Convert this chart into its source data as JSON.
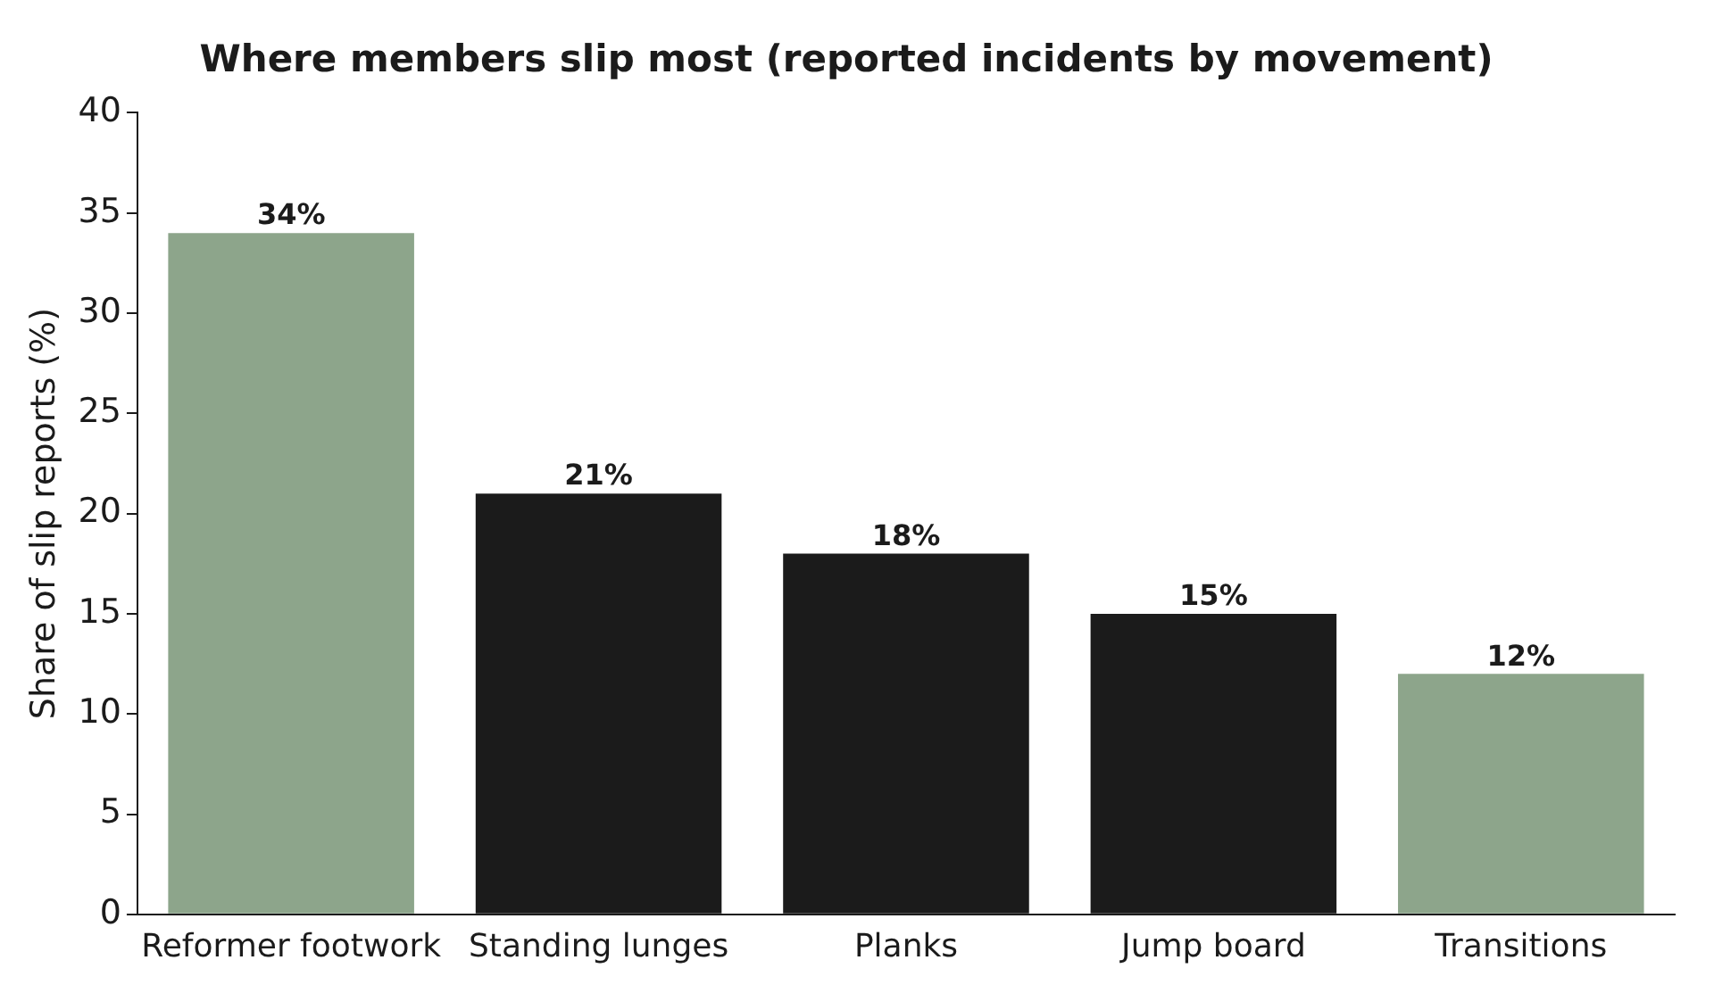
{
  "chart_data": {
    "type": "bar",
    "title": "Where members slip most (reported incidents by movement)",
    "ylabel": "Share of slip reports (%)",
    "categories": [
      "Reformer footwork",
      "Standing lunges",
      "Planks",
      "Jump board",
      "Transitions"
    ],
    "values": [
      34,
      21,
      18,
      15,
      12
    ],
    "colors": [
      "#8da58b",
      "#1b1b1b",
      "#1b1b1b",
      "#1b1b1b",
      "#8da58b"
    ],
    "value_labels": [
      "34%",
      "21%",
      "18%",
      "15%",
      "12%"
    ],
    "ylim": [
      0,
      40
    ],
    "yticks": [
      0,
      5,
      10,
      15,
      20,
      25,
      30,
      35,
      40
    ],
    "grid": false,
    "legend": false
  }
}
